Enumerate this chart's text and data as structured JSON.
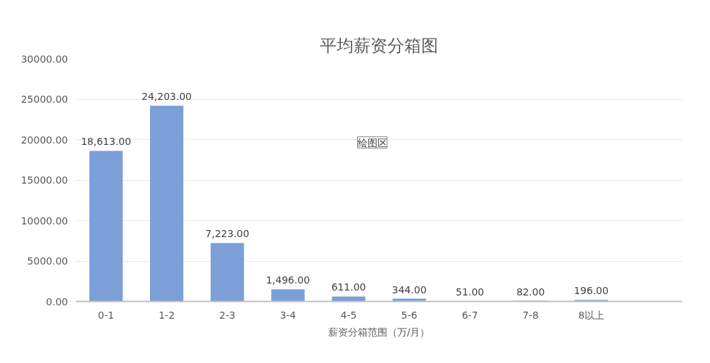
{
  "chart_data": {
    "type": "bar",
    "title": "平均薪资分箱图",
    "xlabel": "薪资分箱范围（万/月）",
    "categories": [
      "0-1",
      "1-2",
      "2-3",
      "3-4",
      "4-5",
      "5-6",
      "6-7",
      "7-8",
      "8以上",
      null
    ],
    "values": [
      18613,
      24203,
      7223,
      1496,
      611,
      344,
      51,
      82,
      196,
      null
    ],
    "color": "#7c9fd8",
    "ylim": [
      0,
      30000
    ],
    "yticks": [
      {
        "value": 0,
        "label": "0.00"
      },
      {
        "value": 5000,
        "label": "5000.00"
      },
      {
        "value": 10000,
        "label": "10000.00"
      },
      {
        "value": 15000,
        "label": "15000.00"
      },
      {
        "value": 20000,
        "label": "20000.00"
      },
      {
        "value": 25000,
        "label": "25000.00"
      },
      {
        "value": 30000,
        "label": "30000.00"
      }
    ],
    "grid": "y",
    "value_labels": [
      "18,613.00",
      "24,203.00",
      "7,223.00",
      "1,496.00",
      "611.00",
      "344.00",
      "51.00",
      "82.00",
      "196.00",
      null
    ],
    "annotations": [
      "绘图区"
    ]
  }
}
